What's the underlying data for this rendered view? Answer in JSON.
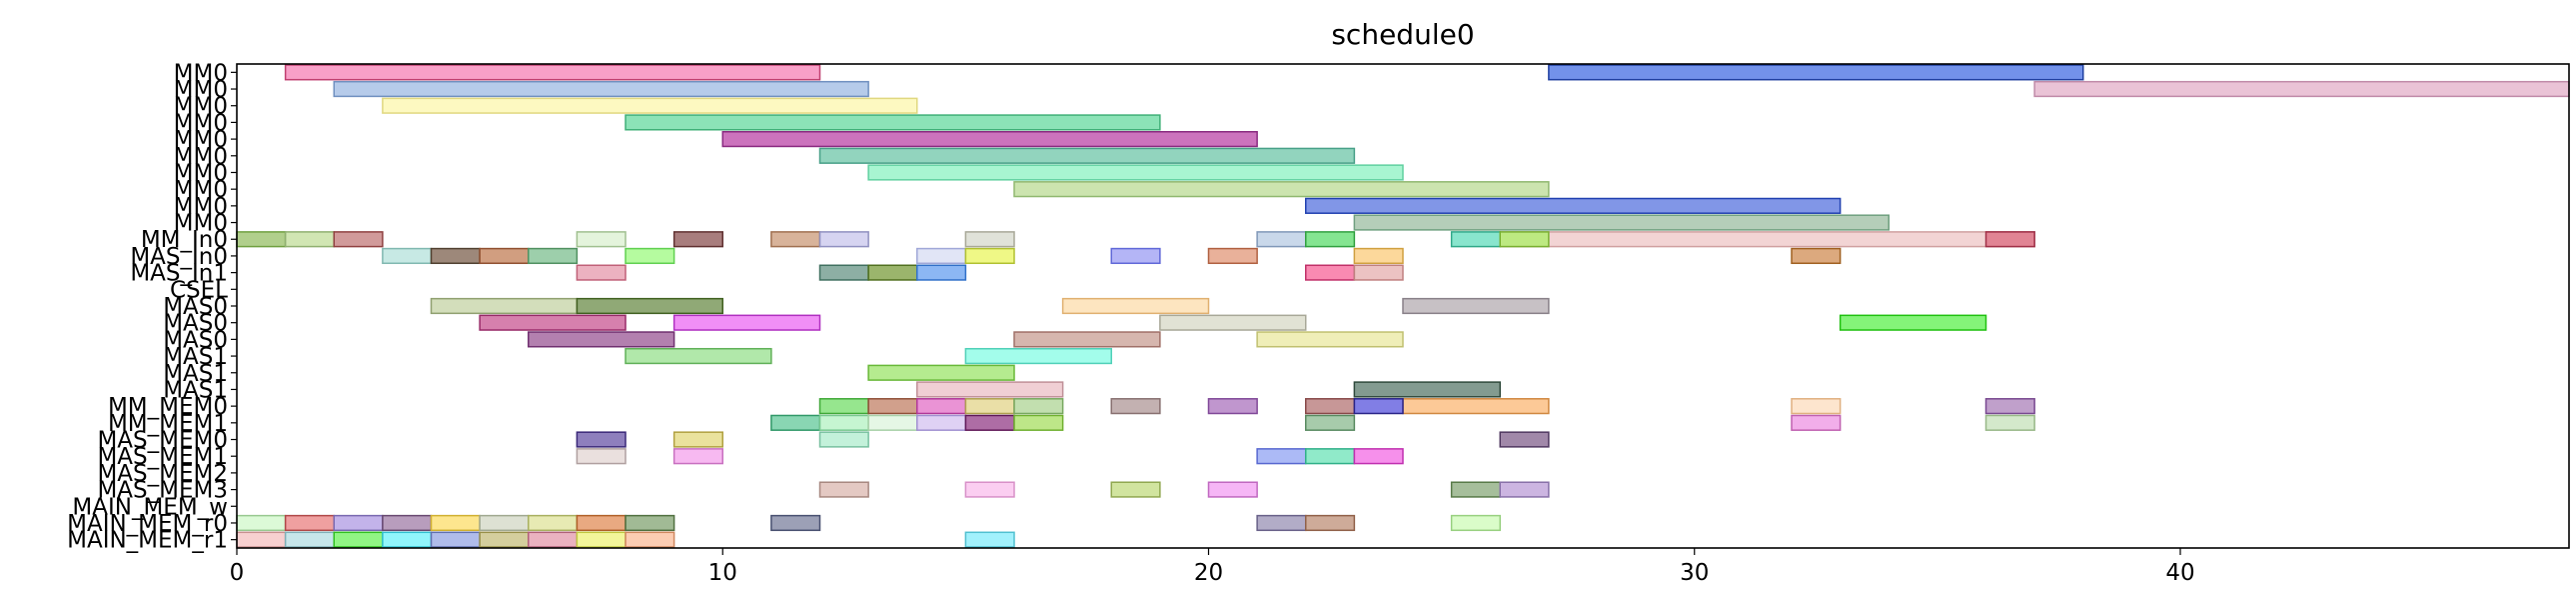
{
  "chart_data": {
    "type": "bar",
    "orientation": "gantt",
    "title": "schedule0",
    "xlabel": "",
    "ylabel": "",
    "xlim": [
      0,
      48
    ],
    "xticks": [
      0,
      10,
      20,
      30,
      40
    ],
    "grid": false,
    "rows": [
      "MM0",
      "MM0",
      "MM0",
      "MM0",
      "MM0",
      "MM0",
      "MM0",
      "MM0",
      "MM0",
      "MM0",
      "MM_In0",
      "MAS_In0",
      "MAS_In1",
      "CSEL",
      "MAS0",
      "MAS0",
      "MAS0",
      "MAS1",
      "MAS1",
      "MAS1",
      "MM_MEM0",
      "MM_MEM1",
      "MAS_MEM0",
      "MAS_MEM1",
      "MAS_MEM2",
      "MAS_MEM3",
      "MAIN_MEM_w",
      "MAIN_MEM_r0",
      "MAIN_MEM_r1"
    ],
    "tasks": [
      {
        "row": 0,
        "start": 1,
        "end": 12,
        "color": "#f78fbe",
        "edge": "#c04070"
      },
      {
        "row": 0,
        "start": 27,
        "end": 38,
        "color": "#5b7fe6",
        "edge": "#2040a0"
      },
      {
        "row": 1,
        "start": 2,
        "end": 13,
        "color": "#a9c2e6",
        "edge": "#7090c0"
      },
      {
        "row": 1,
        "start": 37,
        "end": 48,
        "color": "#e6b8cf",
        "edge": "#c08aa8"
      },
      {
        "row": 2,
        "start": 3,
        "end": 14,
        "color": "#fdf8b6",
        "edge": "#e0d880"
      },
      {
        "row": 3,
        "start": 8,
        "end": 19,
        "color": "#78deaa",
        "edge": "#40b078"
      },
      {
        "row": 4,
        "start": 10,
        "end": 21,
        "color": "#c35ab1",
        "edge": "#8a2a80"
      },
      {
        "row": 5,
        "start": 12,
        "end": 23,
        "color": "#7fcdb3",
        "edge": "#48a088"
      },
      {
        "row": 6,
        "start": 13,
        "end": 24,
        "color": "#99f3c9",
        "edge": "#60d0a0"
      },
      {
        "row": 7,
        "start": 16,
        "end": 27,
        "color": "#c3dfa1",
        "edge": "#90b870"
      },
      {
        "row": 8,
        "start": 22,
        "end": 33,
        "color": "#6b84e3",
        "edge": "#2040b0"
      },
      {
        "row": 9,
        "start": 23,
        "end": 34,
        "color": "#a8c6ad",
        "edge": "#70a080"
      },
      {
        "row": 10,
        "start": 26,
        "end": 37,
        "color": "#f0cccc",
        "edge": "#d0a0a0"
      },
      {
        "row": 10,
        "start": 0,
        "end": 1,
        "color": "#a3c778",
        "edge": "#70a040"
      },
      {
        "row": 10,
        "start": 1,
        "end": 2,
        "color": "#c9e2a6",
        "edge": "#90b070"
      },
      {
        "row": 10,
        "start": 2,
        "end": 3,
        "color": "#c98888",
        "edge": "#904040"
      },
      {
        "row": 10,
        "start": 7,
        "end": 8,
        "color": "#dff2d6",
        "edge": "#a0c090"
      },
      {
        "row": 10,
        "start": 9,
        "end": 10,
        "color": "#996666",
        "edge": "#603030"
      },
      {
        "row": 10,
        "start": 11,
        "end": 12,
        "color": "#d1a688",
        "edge": "#a07050"
      },
      {
        "row": 10,
        "start": 12,
        "end": 13,
        "color": "#cfcdef",
        "edge": "#9090c0"
      },
      {
        "row": 10,
        "start": 15,
        "end": 16,
        "color": "#dbddd2",
        "edge": "#a8a898"
      },
      {
        "row": 10,
        "start": 21,
        "end": 22,
        "color": "#bfd1e6",
        "edge": "#8098b8"
      },
      {
        "row": 10,
        "start": 22,
        "end": 23,
        "color": "#6ee07e",
        "edge": "#30a040"
      },
      {
        "row": 10,
        "start": 25,
        "end": 26,
        "color": "#74e0c4",
        "edge": "#30a888"
      },
      {
        "row": 10,
        "start": 26,
        "end": 27,
        "color": "#b4ec72",
        "edge": "#78b030"
      },
      {
        "row": 10,
        "start": 36,
        "end": 37,
        "color": "#de7588",
        "edge": "#a03048"
      },
      {
        "row": 11,
        "start": 3,
        "end": 4,
        "color": "#bde5df",
        "edge": "#80b8b0"
      },
      {
        "row": 11,
        "start": 4,
        "end": 5,
        "color": "#8c7363",
        "edge": "#504030"
      },
      {
        "row": 11,
        "start": 5,
        "end": 6,
        "color": "#c98d6a",
        "edge": "#905030"
      },
      {
        "row": 11,
        "start": 6,
        "end": 7,
        "color": "#8cc79c",
        "edge": "#509060"
      },
      {
        "row": 11,
        "start": 8,
        "end": 9,
        "color": "#a8fa8e",
        "edge": "#60d050"
      },
      {
        "row": 11,
        "start": 14,
        "end": 15,
        "color": "#dce0f5",
        "edge": "#a0a8d8"
      },
      {
        "row": 11,
        "start": 15,
        "end": 16,
        "color": "#ecf771",
        "edge": "#b0c030"
      },
      {
        "row": 11,
        "start": 18,
        "end": 19,
        "color": "#a7a8f5",
        "edge": "#6068d8"
      },
      {
        "row": 11,
        "start": 20,
        "end": 21,
        "color": "#e5a388",
        "edge": "#b06040"
      },
      {
        "row": 11,
        "start": 23,
        "end": 24,
        "color": "#fbd18a",
        "edge": "#d0a040"
      },
      {
        "row": 11,
        "start": 32,
        "end": 33,
        "color": "#d69a67",
        "edge": "#a06020"
      },
      {
        "row": 12,
        "start": 7,
        "end": 8,
        "color": "#e9a5b5",
        "edge": "#c06078"
      },
      {
        "row": 12,
        "start": 12,
        "end": 13,
        "color": "#79a194",
        "edge": "#407060"
      },
      {
        "row": 12,
        "start": 13,
        "end": 14,
        "color": "#89a852",
        "edge": "#507020"
      },
      {
        "row": 12,
        "start": 14,
        "end": 15,
        "color": "#78aaf2",
        "edge": "#3070c8"
      },
      {
        "row": 12,
        "start": 22,
        "end": 23,
        "color": "#f876a5",
        "edge": "#c03068"
      },
      {
        "row": 12,
        "start": 23,
        "end": 24,
        "color": "#e9b8b8",
        "edge": "#c08080"
      },
      {
        "row": 14,
        "start": 4,
        "end": 7,
        "color": "#cbd8af",
        "edge": "#90a070"
      },
      {
        "row": 14,
        "start": 7,
        "end": 10,
        "color": "#7d9a5e",
        "edge": "#406020"
      },
      {
        "row": 14,
        "start": 17,
        "end": 20,
        "color": "#fde0b5",
        "edge": "#e0b070"
      },
      {
        "row": 14,
        "start": 24,
        "end": 27,
        "color": "#bdb6bb",
        "edge": "#888088"
      },
      {
        "row": 15,
        "start": 5,
        "end": 8,
        "color": "#cf6a9f",
        "edge": "#982a68"
      },
      {
        "row": 15,
        "start": 9,
        "end": 12,
        "color": "#ee7bf4",
        "edge": "#b030c0"
      },
      {
        "row": 15,
        "start": 19,
        "end": 22,
        "color": "#dcddcd",
        "edge": "#a8a898"
      },
      {
        "row": 15,
        "start": 33,
        "end": 36,
        "color": "#6ef261",
        "edge": "#20c010"
      },
      {
        "row": 16,
        "start": 6,
        "end": 9,
        "color": "#a66aa1",
        "edge": "#703070"
      },
      {
        "row": 16,
        "start": 16,
        "end": 19,
        "color": "#cfa9a0",
        "edge": "#a07068"
      },
      {
        "row": 16,
        "start": 21,
        "end": 24,
        "color": "#ecebab",
        "edge": "#c0c070"
      },
      {
        "row": 17,
        "start": 8,
        "end": 11,
        "color": "#a3e49b",
        "edge": "#60b058"
      },
      {
        "row": 17,
        "start": 15,
        "end": 18,
        "color": "#93fde8",
        "edge": "#50d0b8"
      },
      {
        "row": 18,
        "start": 13,
        "end": 16,
        "color": "#a8e77b",
        "edge": "#68b838"
      },
      {
        "row": 19,
        "start": 14,
        "end": 17,
        "color": "#edc7cc",
        "edge": "#c09098"
      },
      {
        "row": 19,
        "start": 23,
        "end": 26,
        "color": "#6d8a7d",
        "edge": "#304a3c"
      },
      {
        "row": 20,
        "start": 24,
        "end": 27,
        "color": "#fbc085",
        "edge": "#d08840"
      },
      {
        "row": 20,
        "start": 12,
        "end": 13,
        "color": "#84e27a",
        "edge": "#40a838"
      },
      {
        "row": 20,
        "start": 13,
        "end": 14,
        "color": "#c98f78",
        "edge": "#905038"
      },
      {
        "row": 20,
        "start": 14,
        "end": 15,
        "color": "#e680ce",
        "edge": "#b03898"
      },
      {
        "row": 20,
        "start": 15,
        "end": 16,
        "color": "#e6d998",
        "edge": "#b0a050"
      },
      {
        "row": 20,
        "start": 16,
        "end": 17,
        "color": "#b7d9a1",
        "edge": "#78a860"
      },
      {
        "row": 20,
        "start": 18,
        "end": 19,
        "color": "#b9a3a3",
        "edge": "#887070"
      },
      {
        "row": 20,
        "start": 20,
        "end": 21,
        "color": "#b584c6",
        "edge": "#804898"
      },
      {
        "row": 20,
        "start": 22,
        "end": 23,
        "color": "#bd8585",
        "edge": "#884848"
      },
      {
        "row": 20,
        "start": 23,
        "end": 24,
        "color": "#6b67e0",
        "edge": "#2a2488"
      },
      {
        "row": 20,
        "start": 32,
        "end": 33,
        "color": "#fde0c5",
        "edge": "#e0b080"
      },
      {
        "row": 20,
        "start": 36,
        "end": 37,
        "color": "#b58fc2",
        "edge": "#784890"
      },
      {
        "row": 21,
        "start": 11,
        "end": 12,
        "color": "#74cfa6",
        "edge": "#309868"
      },
      {
        "row": 21,
        "start": 12,
        "end": 13,
        "color": "#bcf3c9",
        "edge": "#78c890"
      },
      {
        "row": 21,
        "start": 13,
        "end": 14,
        "color": "#e0f6e1",
        "edge": "#a8d0a8"
      },
      {
        "row": 21,
        "start": 14,
        "end": 15,
        "color": "#d9c9f2",
        "edge": "#a090d0"
      },
      {
        "row": 21,
        "start": 15,
        "end": 16,
        "color": "#a05495",
        "edge": "#601858"
      },
      {
        "row": 21,
        "start": 16,
        "end": 17,
        "color": "#b2e373",
        "edge": "#70b030"
      },
      {
        "row": 21,
        "start": 22,
        "end": 23,
        "color": "#98c29c",
        "edge": "#588a60"
      },
      {
        "row": 21,
        "start": 32,
        "end": 33,
        "color": "#f0a0e6",
        "edge": "#c060b0"
      },
      {
        "row": 21,
        "start": 36,
        "end": 37,
        "color": "#cde5c2",
        "edge": "#98b888"
      },
      {
        "row": 22,
        "start": 7,
        "end": 8,
        "color": "#7a69b1",
        "edge": "#3a2878"
      },
      {
        "row": 22,
        "start": 9,
        "end": 10,
        "color": "#e6dd8c",
        "edge": "#b0a040"
      },
      {
        "row": 22,
        "start": 12,
        "end": 13,
        "color": "#b8eed4",
        "edge": "#78c0a0"
      },
      {
        "row": 22,
        "start": 26,
        "end": 27,
        "color": "#91739a",
        "edge": "#503860"
      },
      {
        "row": 23,
        "start": 7,
        "end": 8,
        "color": "#e6dad8",
        "edge": "#b0a0a0"
      },
      {
        "row": 23,
        "start": 9,
        "end": 10,
        "color": "#f6adee",
        "edge": "#c870c0"
      },
      {
        "row": 23,
        "start": 21,
        "end": 22,
        "color": "#9eaef5",
        "edge": "#5868d0"
      },
      {
        "row": 23,
        "start": 22,
        "end": 23,
        "color": "#7de6c0",
        "edge": "#30b088"
      },
      {
        "row": 23,
        "start": 23,
        "end": 24,
        "color": "#f57de8",
        "edge": "#c030b0"
      },
      {
        "row": 25,
        "start": 12,
        "end": 13,
        "color": "#dfbfb8",
        "edge": "#a88880"
      },
      {
        "row": 25,
        "start": 15,
        "end": 16,
        "color": "#fac6ef",
        "edge": "#d890c8"
      },
      {
        "row": 25,
        "start": 18,
        "end": 19,
        "color": "#c9df8e",
        "edge": "#90a850"
      },
      {
        "row": 25,
        "start": 20,
        "end": 21,
        "color": "#f4a9f4",
        "edge": "#c068c0"
      },
      {
        "row": 25,
        "start": 25,
        "end": 26,
        "color": "#96b389",
        "edge": "#587a48"
      },
      {
        "row": 25,
        "start": 26,
        "end": 27,
        "color": "#c3a8dc",
        "edge": "#8870a8"
      },
      {
        "row": 27,
        "start": 0,
        "end": 1,
        "color": "#d6f9d0",
        "edge": "#98c890"
      },
      {
        "row": 27,
        "start": 1,
        "end": 2,
        "color": "#ec8f8f",
        "edge": "#b04848"
      },
      {
        "row": 27,
        "start": 2,
        "end": 3,
        "color": "#b9a6e6",
        "edge": "#7868b0"
      },
      {
        "row": 27,
        "start": 3,
        "end": 4,
        "color": "#ab8cb1",
        "edge": "#684870"
      },
      {
        "row": 27,
        "start": 4,
        "end": 5,
        "color": "#fde27a",
        "edge": "#d0b030"
      },
      {
        "row": 27,
        "start": 5,
        "end": 6,
        "color": "#d7dccb",
        "edge": "#a0a890"
      },
      {
        "row": 27,
        "start": 6,
        "end": 7,
        "color": "#e3e6a6",
        "edge": "#a8b060"
      },
      {
        "row": 27,
        "start": 7,
        "end": 8,
        "color": "#e59a6b",
        "edge": "#b06028"
      },
      {
        "row": 27,
        "start": 8,
        "end": 9,
        "color": "#91ae82",
        "edge": "#507040"
      },
      {
        "row": 27,
        "start": 11,
        "end": 12,
        "color": "#8b8fa9",
        "edge": "#485070"
      },
      {
        "row": 27,
        "start": 21,
        "end": 22,
        "color": "#a49ebd",
        "edge": "#686088"
      },
      {
        "row": 27,
        "start": 22,
        "end": 23,
        "color": "#c59c87",
        "edge": "#906048"
      },
      {
        "row": 27,
        "start": 25,
        "end": 26,
        "color": "#d4fcc0",
        "edge": "#98d080"
      },
      {
        "row": 28,
        "start": 0,
        "end": 1,
        "color": "#f6c8c8",
        "edge": "#c89090"
      },
      {
        "row": 28,
        "start": 1,
        "end": 2,
        "color": "#bde2e6",
        "edge": "#80b0b8"
      },
      {
        "row": 28,
        "start": 2,
        "end": 3,
        "color": "#7ef36e",
        "edge": "#30c020"
      },
      {
        "row": 28,
        "start": 3,
        "end": 4,
        "color": "#7ef3fb",
        "edge": "#30c0d0"
      },
      {
        "row": 28,
        "start": 4,
        "end": 5,
        "color": "#a2b0e6",
        "edge": "#6070b0"
      },
      {
        "row": 28,
        "start": 5,
        "end": 6,
        "color": "#cdc68c",
        "edge": "#989048"
      },
      {
        "row": 28,
        "start": 6,
        "end": 7,
        "color": "#e6a4b5",
        "edge": "#b06078"
      },
      {
        "row": 28,
        "start": 7,
        "end": 8,
        "color": "#f1f58a",
        "edge": "#c0c840"
      },
      {
        "row": 28,
        "start": 8,
        "end": 9,
        "color": "#fbc4a6",
        "edge": "#d08860"
      },
      {
        "row": 28,
        "start": 15,
        "end": 16,
        "color": "#92effc",
        "edge": "#50c0d0"
      }
    ]
  }
}
